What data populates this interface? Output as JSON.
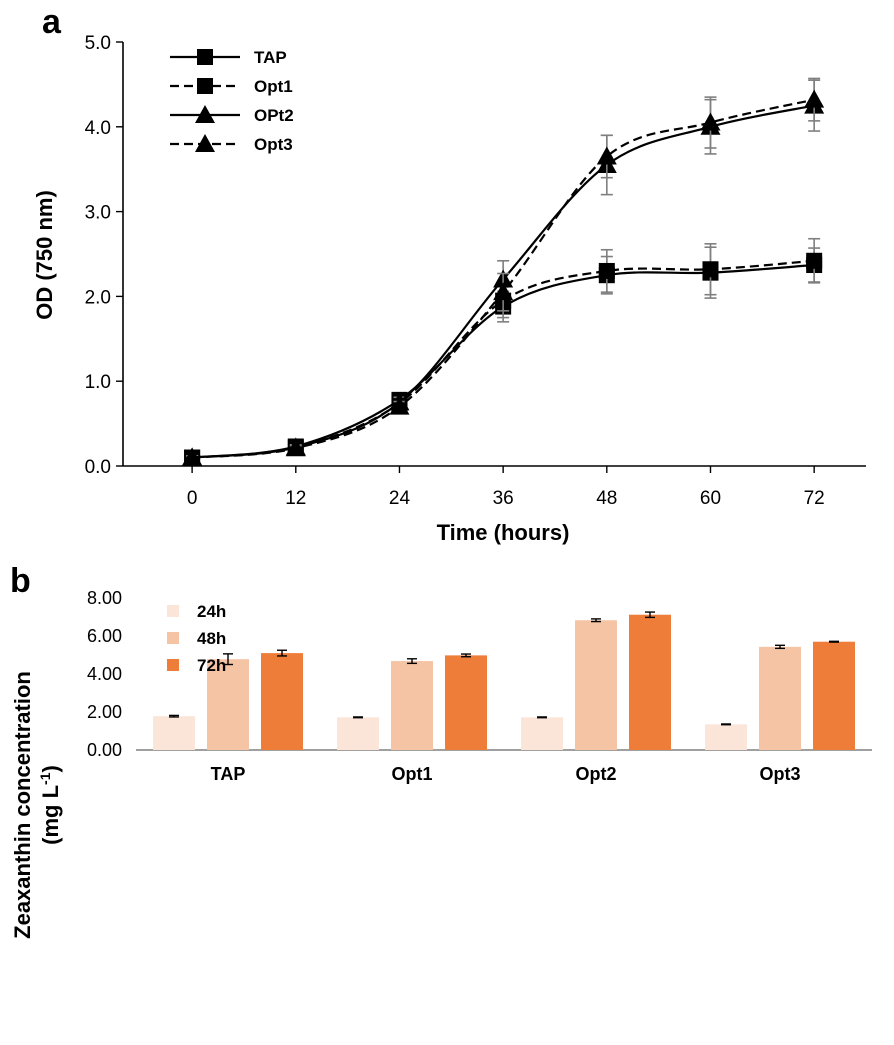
{
  "chart_data": [
    {
      "panel": "a",
      "type": "line",
      "xlabel": "Time (hours)",
      "ylabel": "OD (750 nm)",
      "x": [
        0,
        12,
        24,
        36,
        48,
        60,
        72
      ],
      "x_ticks": [
        "0",
        "12",
        "24",
        "36",
        "48",
        "60",
        "72"
      ],
      "xlim": [
        -8,
        78
      ],
      "ylim": [
        0,
        5
      ],
      "y_ticks": [
        "0.0",
        "1.0",
        "2.0",
        "3.0",
        "4.0",
        "5.0"
      ],
      "legend_position": "top-left",
      "series": [
        {
          "name": "TAP",
          "marker": "square",
          "line": "solid",
          "values": [
            0.1,
            0.23,
            0.78,
            1.88,
            2.25,
            2.28,
            2.37
          ],
          "errors": [
            0.02,
            0.03,
            0.05,
            0.18,
            0.22,
            0.3,
            0.2
          ]
        },
        {
          "name": "Opt1",
          "marker": "square",
          "line": "dashed",
          "values": [
            0.1,
            0.22,
            0.74,
            1.95,
            2.3,
            2.32,
            2.42
          ],
          "errors": [
            0.02,
            0.03,
            0.05,
            0.2,
            0.25,
            0.3,
            0.26
          ]
        },
        {
          "name": "OPt2",
          "marker": "triangle",
          "line": "solid",
          "values": [
            0.1,
            0.22,
            0.75,
            2.2,
            3.55,
            4.0,
            4.25
          ],
          "errors": [
            0.02,
            0.03,
            0.06,
            0.22,
            0.35,
            0.32,
            0.3
          ]
        },
        {
          "name": "Opt3",
          "marker": "triangle",
          "line": "dashed",
          "values": [
            0.1,
            0.21,
            0.7,
            2.05,
            3.65,
            4.05,
            4.32
          ],
          "errors": [
            0.02,
            0.03,
            0.06,
            0.22,
            0.25,
            0.3,
            0.25
          ]
        }
      ]
    },
    {
      "panel": "b",
      "type": "bar",
      "categories": [
        "TAP",
        "Opt1",
        "Opt2",
        "Opt3"
      ],
      "ylabel_line1": "Zeaxanthin concentration",
      "ylabel_line2_pre": "(mg L",
      "ylabel_line2_sup": "-1",
      "ylabel_line2_post": ")",
      "ylim": [
        0,
        8
      ],
      "y_ticks": [
        "0.00",
        "2.00",
        "4.00",
        "6.00",
        "8.00"
      ],
      "legend_position": "top-left",
      "series": [
        {
          "name": "24h",
          "color": "#fae5d8",
          "values": [
            1.78,
            1.72,
            1.72,
            1.35
          ],
          "errors": [
            0.04,
            0.02,
            0.02,
            0.02
          ]
        },
        {
          "name": "48h",
          "color": "#f5c4a4",
          "values": [
            4.78,
            4.68,
            6.83,
            5.43
          ],
          "errors": [
            0.28,
            0.12,
            0.07,
            0.08
          ]
        },
        {
          "name": "72h",
          "color": "#ee7d3a",
          "values": [
            5.1,
            4.98,
            7.12,
            5.7
          ],
          "errors": [
            0.15,
            0.07,
            0.14,
            0.02
          ]
        }
      ]
    }
  ],
  "colors": {
    "ink": "#000000",
    "errorbar": "#7f7f7f"
  }
}
